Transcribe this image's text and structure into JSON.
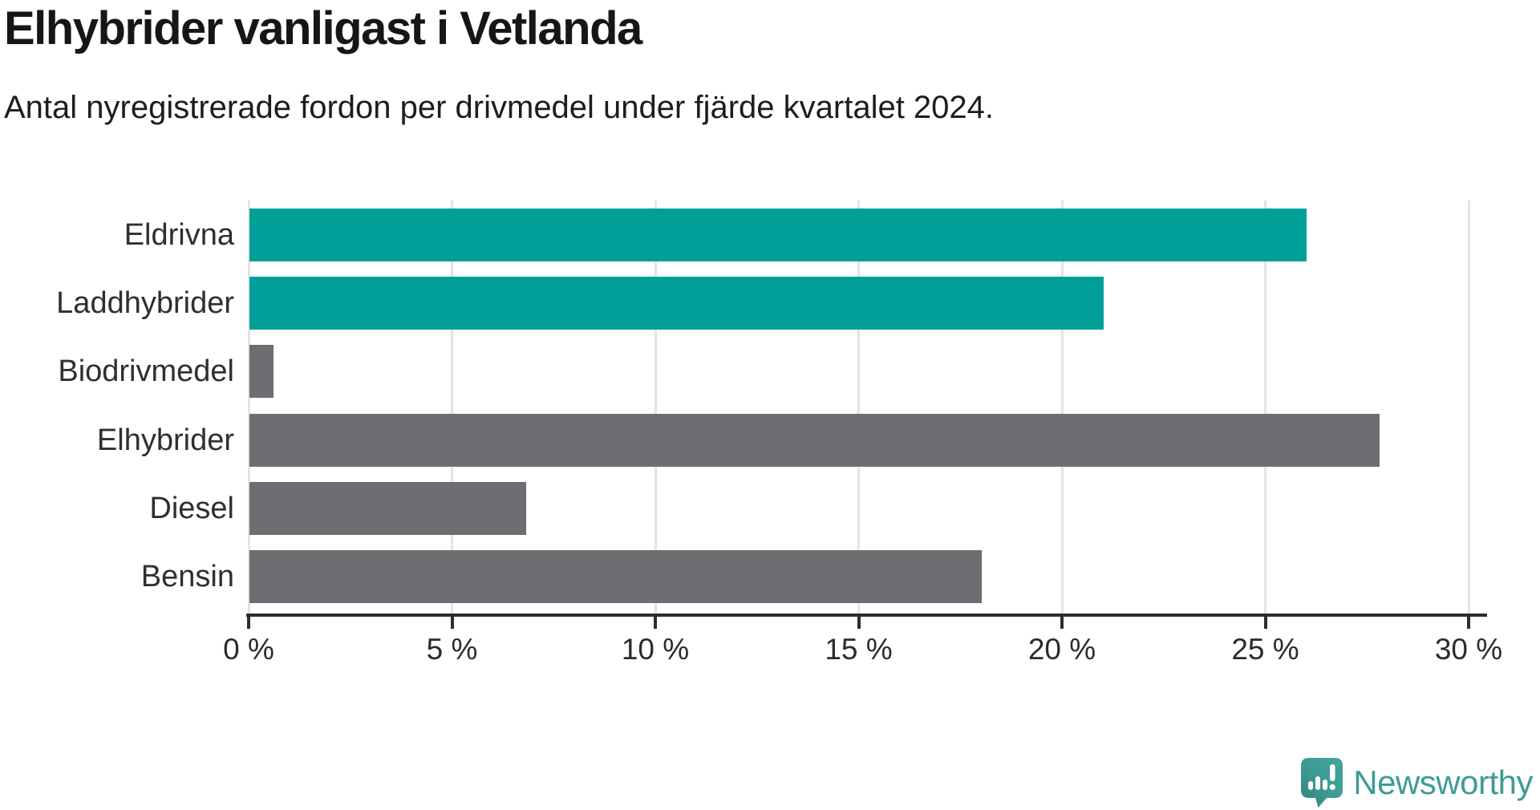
{
  "title": "Elhybrider vanligast i Vetlanda",
  "subtitle": "Antal nyregistrerade fordon per drivmedel under fjärde kvartalet 2024.",
  "logo": {
    "text": "Newsworthy"
  },
  "colors": {
    "teal_bar": "#00a099",
    "gray_bar": "#6d6d72",
    "axis": "#2d2d2d",
    "gridline": "#e4e4e4",
    "logo_teal": "#3e9c95",
    "title_text": "#161616"
  },
  "chart_data": {
    "type": "bar",
    "orientation": "horizontal",
    "title": "Elhybrider vanligast i Vetlanda",
    "subtitle": "Antal nyregistrerade fordon per drivmedel under fjärde kvartalet 2024.",
    "categories": [
      "Eldrivna",
      "Laddhybrider",
      "Biodrivmedel",
      "Elhybrider",
      "Diesel",
      "Bensin"
    ],
    "values": [
      26,
      21,
      0.6,
      27.8,
      6.8,
      18
    ],
    "unit": "%",
    "bar_colors": [
      "#00a099",
      "#00a099",
      "#6d6d72",
      "#6d6d72",
      "#6d6d72",
      "#6d6d72"
    ],
    "xlabel": "",
    "ylabel": "",
    "xlim": [
      0,
      30
    ],
    "x_tick_values": [
      0,
      5,
      10,
      15,
      20,
      25,
      30
    ],
    "x_ticks": [
      "0 %",
      "5 %",
      "10 %",
      "15 %",
      "20 %",
      "25 %",
      "30 %"
    ],
    "grid": "vertical",
    "legend": "none"
  }
}
